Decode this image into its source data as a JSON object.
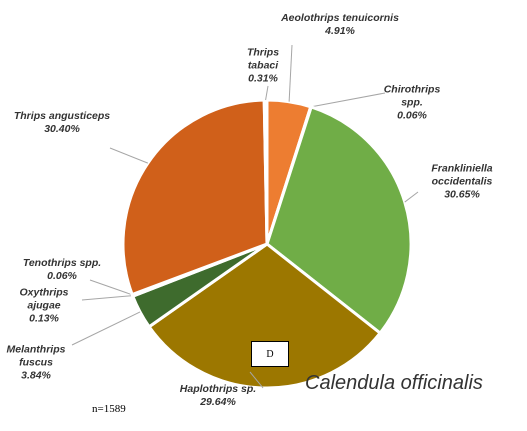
{
  "chart_data": {
    "type": "pie",
    "categories": [
      "Aeolothrips tenuicornis",
      "Chirothrips spp.",
      "Frankliniella occidentalis",
      "Haplothrips sp.",
      "Melanthrips fuscus",
      "Oxythrips ajugae",
      "Tenothrips spp.",
      "Thrips angusticeps",
      "Thrips tabaci"
    ],
    "values": [
      4.91,
      0.06,
      30.65,
      29.64,
      3.84,
      0.13,
      0.06,
      30.4,
      0.31
    ],
    "value_labels": [
      "4.91%",
      "0.06%",
      "30.65%",
      "29.64%",
      "3.84%",
      "0.13%",
      "0.06%",
      "30.40%",
      "0.31%"
    ],
    "colors": [
      "#ED7D31",
      "#A9D18E",
      "#70AD47",
      "#9C7700",
      "#3E6B2D",
      "#5A8A3A",
      "#B85A1A",
      "#D0601A",
      "#F4B183"
    ],
    "annotations": {
      "plant": "Calendula officinalis",
      "sample": "n=1589",
      "panel": "D"
    }
  }
}
